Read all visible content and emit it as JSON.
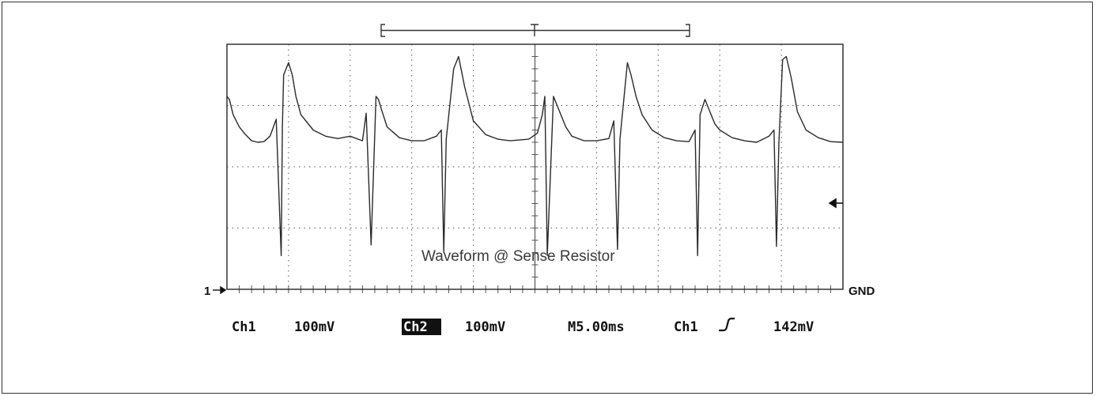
{
  "colors": {
    "trace": "#2a2a2a",
    "grid": "#555555",
    "background": "#ffffff",
    "border": "#333333"
  },
  "screen": {
    "annotation": "Waveform @ Sense Resistor",
    "ground_label": "GND",
    "channel_marker": "1",
    "trigger_marker_icon": "arrow-left-icon",
    "readout": {
      "ch1_label": "Ch1",
      "ch1_scale": "100mV",
      "ch2_label": "Ch2",
      "ch2_scale": "100mV",
      "timebase": "M5.00ms",
      "trigger_source": "Ch1",
      "trigger_slope_icon": "rising-edge-icon",
      "trigger_level": "142mV"
    }
  },
  "chart_data": {
    "type": "line",
    "x_unit": "ms",
    "y_unit": "mV",
    "xlim": [
      0,
      50
    ],
    "ylim": [
      -100,
      700
    ],
    "grid": true,
    "series": [
      {
        "x": [
          0,
          0.2,
          0.5,
          1.0,
          1.5,
          2.0,
          2.5,
          3.0,
          3.5,
          4.0,
          4.4,
          4.5,
          4.6,
          5.0,
          5.3,
          5.6,
          6.0,
          7.0,
          8.0,
          9.0,
          10.0,
          11.0,
          11.3,
          11.7,
          12.1,
          12.3,
          12.6,
          13.0,
          14.0,
          15.0,
          16.0,
          17.0,
          17.4,
          17.6,
          17.8,
          18.4,
          18.8,
          19.3,
          20.0,
          21.0,
          22.0,
          23.0,
          24.5,
          25.2,
          25.6,
          25.8,
          26.0,
          26.5,
          27.0,
          27.5,
          28.0,
          29.0,
          30.0,
          31.0,
          31.4,
          31.7,
          31.9,
          32.5,
          32.8,
          33.2,
          33.7,
          34.5,
          35.5,
          36.5,
          37.5,
          38.0,
          38.2,
          38.4,
          38.8,
          39.2,
          39.6,
          40.0,
          41.0,
          42.0,
          43.0,
          44.0,
          44.4,
          44.6,
          44.8,
          45.1,
          45.4,
          45.8,
          46.3,
          47.0,
          48.0,
          49.0,
          50.0
        ],
        "y": [
          530,
          520,
          470,
          430,
          405,
          385,
          380,
          382,
          400,
          455,
          10,
          430,
          600,
          640,
          600,
          530,
          470,
          420,
          400,
          392,
          400,
          385,
          475,
          45,
          530,
          520,
          480,
          430,
          395,
          385,
          385,
          400,
          420,
          20,
          390,
          620,
          660,
          560,
          450,
          405,
          390,
          385,
          390,
          410,
          470,
          530,
          10,
          530,
          480,
          430,
          400,
          385,
          385,
          392,
          450,
          30,
          390,
          640,
          600,
          530,
          470,
          420,
          395,
          385,
          382,
          420,
          10,
          470,
          520,
          480,
          440,
          420,
          395,
          385,
          380,
          400,
          420,
          40,
          380,
          650,
          660,
          590,
          480,
          420,
          395,
          382,
          380
        ]
      }
    ]
  }
}
